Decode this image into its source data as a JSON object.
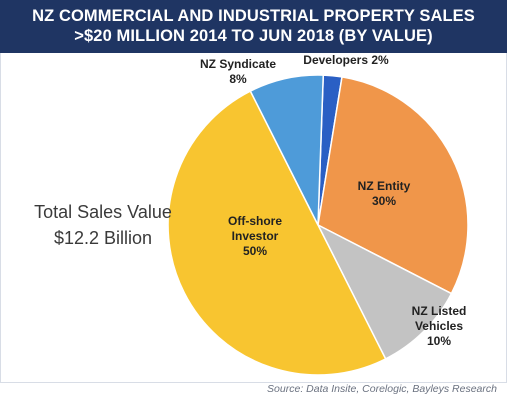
{
  "title": {
    "line1": "NZ COMMERCIAL AND INDUSTRIAL PROPERTY SALES",
    "line2": ">$20 MILLION 2014 TO JUN 2018 (BY VALUE)"
  },
  "total_label": {
    "line1": "Total Sales Value",
    "line2": "$12.2 Billion"
  },
  "source": "Source: Data Insite, Corelogic, Bayleys Research",
  "chart_data": {
    "type": "pie",
    "title": "NZ COMMERCIAL AND INDUSTRIAL PROPERTY SALES >$20 MILLION 2014 TO JUN 2018 (BY VALUE)",
    "unit": "%",
    "slices": [
      {
        "label": "Developers",
        "value": 2,
        "display": "Developers 2%",
        "color": "#2a5fc4"
      },
      {
        "label": "NZ Entity",
        "value": 30,
        "display": "NZ Entity|30%",
        "color": "#f0964a"
      },
      {
        "label": "NZ Listed Vehicles",
        "value": 10,
        "display": "NZ Listed|Vehicles|10%",
        "color": "#c3c3c3"
      },
      {
        "label": "Off-shore Investor",
        "value": 50,
        "display": "Off-shore|Investor|50%",
        "color": "#f8c530"
      },
      {
        "label": "NZ Syndicate",
        "value": 8,
        "display": "NZ Syndicate|8%",
        "color": "#4e9bd9"
      }
    ]
  }
}
